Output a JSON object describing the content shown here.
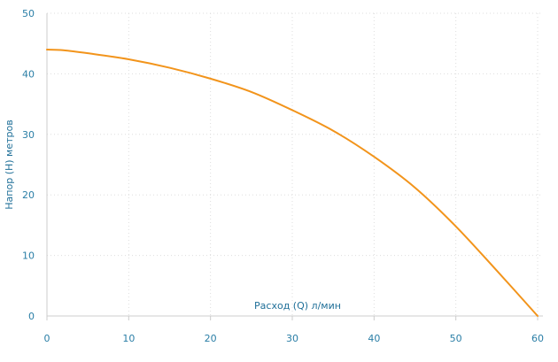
{
  "chart_data": {
    "type": "line",
    "xlabel": "Расход (Q) л/мин",
    "ylabel": "Напор (H) метров",
    "xlim": [
      0,
      60
    ],
    "ylim": [
      0,
      50
    ],
    "x_ticks": [
      0,
      10,
      20,
      30,
      40,
      50,
      60
    ],
    "y_ticks": [
      0,
      10,
      20,
      30,
      40,
      50
    ],
    "grid": true,
    "series": [
      {
        "color": "#f2941b",
        "x": [
          0,
          2,
          5,
          10,
          15,
          20,
          25,
          30,
          35,
          40,
          45,
          50,
          55,
          60
        ],
        "y": [
          44,
          43.9,
          43.4,
          42.4,
          41,
          39.2,
          37,
          34,
          30.6,
          26.3,
          21.2,
          14.8,
          7.5,
          0
        ]
      }
    ]
  }
}
